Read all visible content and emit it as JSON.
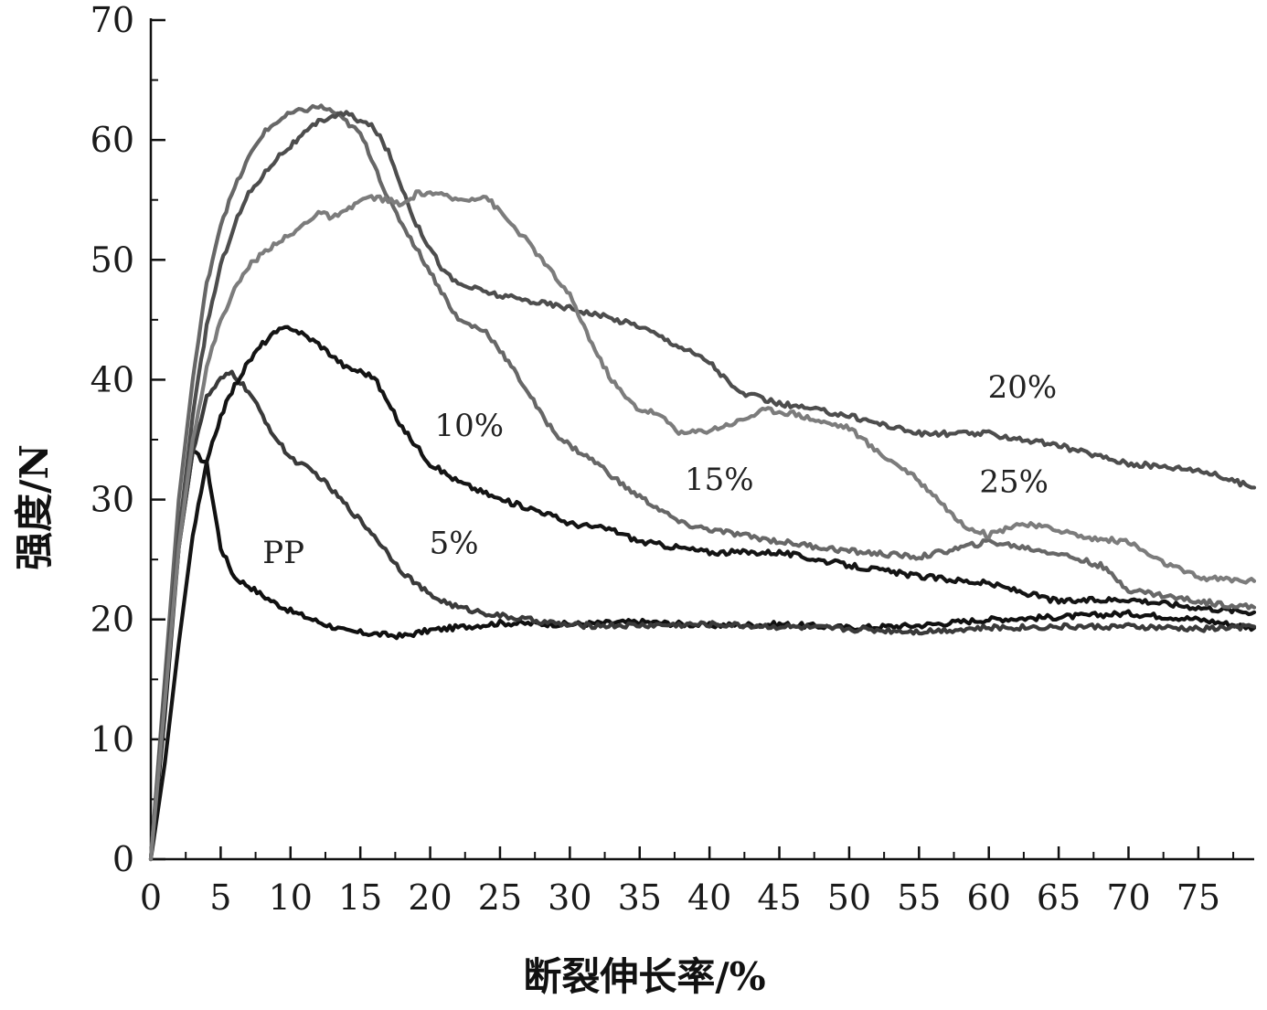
{
  "chart_data": {
    "type": "line",
    "xlabel": "断裂伸长率/%",
    "ylabel": "强度/N",
    "xlim": [
      0,
      79
    ],
    "ylim": [
      0,
      70
    ],
    "x_ticks": [
      0,
      5,
      10,
      15,
      20,
      25,
      30,
      35,
      40,
      45,
      50,
      55,
      60,
      65,
      70,
      75
    ],
    "y_ticks": [
      0,
      10,
      20,
      30,
      40,
      50,
      60,
      70
    ],
    "grid": false,
    "legend": "none",
    "series": [
      {
        "name": "PP",
        "color": "#101010",
        "label": {
          "text": "PP",
          "x": 9.5,
          "y": 24.7
        },
        "points": [
          [
            0,
            0
          ],
          [
            1,
            12
          ],
          [
            2,
            26
          ],
          [
            3,
            34
          ],
          [
            4,
            33
          ],
          [
            5,
            26
          ],
          [
            6,
            23.5
          ],
          [
            7,
            22.8
          ],
          [
            8,
            22
          ],
          [
            9,
            21.3
          ],
          [
            10,
            20.7
          ],
          [
            12,
            19.8
          ],
          [
            14,
            19
          ],
          [
            16,
            18.8
          ],
          [
            18,
            18.6
          ],
          [
            20,
            19.1
          ],
          [
            25,
            19.7
          ],
          [
            30,
            19.6
          ],
          [
            35,
            19.8
          ],
          [
            40,
            19.5
          ],
          [
            45,
            19.6
          ],
          [
            50,
            19.3
          ],
          [
            55,
            19.5
          ],
          [
            60,
            20
          ],
          [
            65,
            20.2
          ],
          [
            70,
            20.5
          ],
          [
            75,
            20
          ],
          [
            79,
            19.3
          ]
        ]
      },
      {
        "name": "5%",
        "color": "#3a3a3a",
        "label": {
          "text": "5%",
          "x": 21.7,
          "y": 25.5
        },
        "points": [
          [
            0,
            0
          ],
          [
            1,
            14
          ],
          [
            2,
            26
          ],
          [
            3,
            34
          ],
          [
            4,
            38.5
          ],
          [
            5,
            40
          ],
          [
            5.8,
            40.6
          ],
          [
            7,
            39
          ],
          [
            8,
            37
          ],
          [
            9,
            35
          ],
          [
            10,
            33.5
          ],
          [
            12,
            32
          ],
          [
            14,
            29.5
          ],
          [
            16,
            27
          ],
          [
            18,
            24
          ],
          [
            20,
            22
          ],
          [
            22,
            21
          ],
          [
            25,
            20.3
          ],
          [
            30,
            19.5
          ],
          [
            35,
            19.5
          ],
          [
            40,
            19.6
          ],
          [
            45,
            19.4
          ],
          [
            50,
            19.2
          ],
          [
            55,
            19
          ],
          [
            60,
            19.3
          ],
          [
            65,
            19.4
          ],
          [
            70,
            19.4
          ],
          [
            75,
            19.2
          ],
          [
            79,
            19.4
          ]
        ]
      },
      {
        "name": "10%",
        "color": "#141414",
        "label": {
          "text": "10%",
          "x": 22.8,
          "y": 35.3
        },
        "points": [
          [
            0,
            0
          ],
          [
            1,
            8
          ],
          [
            2,
            18
          ],
          [
            3,
            27
          ],
          [
            4,
            33
          ],
          [
            5,
            37
          ],
          [
            6,
            39.5
          ],
          [
            7,
            41.5
          ],
          [
            8,
            43
          ],
          [
            9,
            44
          ],
          [
            10,
            44.4
          ],
          [
            12,
            43
          ],
          [
            13,
            42
          ],
          [
            14,
            41
          ],
          [
            15,
            40.7
          ],
          [
            16,
            40.2
          ],
          [
            17,
            38
          ],
          [
            18,
            36
          ],
          [
            19,
            34.5
          ],
          [
            20,
            33
          ],
          [
            22,
            31.5
          ],
          [
            25,
            30
          ],
          [
            28,
            29
          ],
          [
            30,
            28
          ],
          [
            33,
            27.5
          ],
          [
            35,
            26.5
          ],
          [
            40,
            25.6
          ],
          [
            45,
            25.6
          ],
          [
            50,
            24.5
          ],
          [
            55,
            23.6
          ],
          [
            60,
            23
          ],
          [
            65,
            21.5
          ],
          [
            70,
            21.7
          ],
          [
            75,
            21
          ],
          [
            79,
            20.6
          ]
        ]
      },
      {
        "name": "15%",
        "color": "#676767",
        "label": {
          "text": "15%",
          "x": 40.7,
          "y": 30.8
        },
        "points": [
          [
            0,
            0
          ],
          [
            1,
            15
          ],
          [
            2,
            30
          ],
          [
            3,
            40
          ],
          [
            4,
            48
          ],
          [
            5,
            53
          ],
          [
            6,
            56
          ],
          [
            7,
            58.5
          ],
          [
            8,
            60.5
          ],
          [
            9,
            61.5
          ],
          [
            10,
            62.2
          ],
          [
            12,
            62.8
          ],
          [
            13,
            62.4
          ],
          [
            14,
            61.5
          ],
          [
            15,
            60.5
          ],
          [
            16,
            58
          ],
          [
            17,
            55
          ],
          [
            18,
            53
          ],
          [
            19,
            51
          ],
          [
            20,
            49
          ],
          [
            21,
            47
          ],
          [
            22,
            45
          ],
          [
            24,
            44
          ],
          [
            25,
            42.5
          ],
          [
            27,
            39
          ],
          [
            28,
            37
          ],
          [
            29,
            35.5
          ],
          [
            30,
            34.5
          ],
          [
            32,
            33
          ],
          [
            34,
            31
          ],
          [
            36,
            29.5
          ],
          [
            38,
            28
          ],
          [
            40,
            27.5
          ],
          [
            45,
            26.5
          ],
          [
            50,
            25.7
          ],
          [
            55,
            25.2
          ],
          [
            60,
            26.5
          ],
          [
            65,
            25.5
          ],
          [
            68,
            24.5
          ],
          [
            70,
            22.5
          ],
          [
            75,
            21.5
          ],
          [
            79,
            21
          ]
        ]
      },
      {
        "name": "20%",
        "color": "#4d4d4d",
        "label": {
          "text": "20%",
          "x": 62.4,
          "y": 38.5
        },
        "points": [
          [
            0,
            0
          ],
          [
            1,
            14
          ],
          [
            2,
            27
          ],
          [
            3,
            37
          ],
          [
            4,
            44.5
          ],
          [
            5,
            49.5
          ],
          [
            6,
            53
          ],
          [
            7,
            55.5
          ],
          [
            8,
            57
          ],
          [
            9,
            58.5
          ],
          [
            10,
            59.5
          ],
          [
            11,
            60.5
          ],
          [
            12,
            61.5
          ],
          [
            13,
            62
          ],
          [
            14,
            62.2
          ],
          [
            15,
            61.6
          ],
          [
            16,
            61
          ],
          [
            17,
            59
          ],
          [
            18,
            56
          ],
          [
            19,
            53
          ],
          [
            20,
            51
          ],
          [
            21,
            49
          ],
          [
            22,
            48
          ],
          [
            25,
            47
          ],
          [
            30,
            46
          ],
          [
            35,
            44.5
          ],
          [
            40,
            41.5
          ],
          [
            42,
            39
          ],
          [
            45,
            38
          ],
          [
            50,
            37
          ],
          [
            55,
            35.5
          ],
          [
            60,
            35.5
          ],
          [
            65,
            34.5
          ],
          [
            70,
            33
          ],
          [
            75,
            32.5
          ],
          [
            79,
            31
          ]
        ]
      },
      {
        "name": "25%",
        "color": "#7c7c7c",
        "label": {
          "text": "25%",
          "x": 61.8,
          "y": 30.6
        },
        "points": [
          [
            0,
            0
          ],
          [
            1,
            13
          ],
          [
            2,
            26
          ],
          [
            3,
            35
          ],
          [
            4,
            41
          ],
          [
            5,
            45
          ],
          [
            6,
            47.5
          ],
          [
            7,
            49.5
          ],
          [
            8,
            50.5
          ],
          [
            9,
            51.5
          ],
          [
            10,
            52
          ],
          [
            11,
            53
          ],
          [
            12,
            54
          ],
          [
            13,
            53.5
          ],
          [
            14,
            54
          ],
          [
            15,
            55
          ],
          [
            16,
            55.2
          ],
          [
            17,
            55
          ],
          [
            18,
            54.5
          ],
          [
            19,
            55.5
          ],
          [
            20,
            55.6
          ],
          [
            22,
            55
          ],
          [
            24,
            55.3
          ],
          [
            25,
            54
          ],
          [
            27,
            51.5
          ],
          [
            28,
            50
          ],
          [
            29,
            48.5
          ],
          [
            30,
            47
          ],
          [
            31,
            44.5
          ],
          [
            32,
            42
          ],
          [
            33,
            40
          ],
          [
            34,
            38.5
          ],
          [
            35,
            37.5
          ],
          [
            36,
            37.3
          ],
          [
            37,
            36.5
          ],
          [
            38,
            35.5
          ],
          [
            40,
            35.8
          ],
          [
            42,
            36.5
          ],
          [
            44,
            37.5
          ],
          [
            46,
            37.2
          ],
          [
            48,
            36.5
          ],
          [
            50,
            36
          ],
          [
            52,
            34
          ],
          [
            54,
            32.5
          ],
          [
            56,
            30.5
          ],
          [
            58,
            28
          ],
          [
            60,
            27
          ],
          [
            62,
            28
          ],
          [
            65,
            27.5
          ],
          [
            67,
            26.8
          ],
          [
            70,
            26.5
          ],
          [
            72,
            25
          ],
          [
            75,
            23.5
          ],
          [
            79,
            23.2
          ]
        ]
      }
    ]
  }
}
